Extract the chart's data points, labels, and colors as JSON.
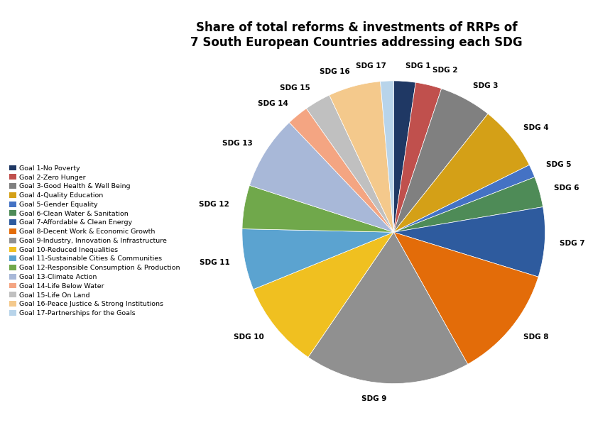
{
  "title": "Share of total reforms & investments of RRPs of\n7 South European Countries addressing each SDG",
  "sdg_labels": [
    "SDG 1",
    "SDG 2",
    "SDG 3",
    "SDG 4",
    "SDG 5",
    "SDG 6",
    "SDG 7",
    "SDG 8",
    "SDG 9",
    "SDG 10",
    "SDG 11",
    "SDG 12",
    "SDG 13",
    "SDG 14",
    "SDG 15",
    "SDG 16",
    "SDG 17"
  ],
  "values": [
    2.5,
    3.0,
    6.0,
    7.5,
    1.5,
    3.5,
    8.0,
    13.0,
    19.0,
    10.0,
    7.0,
    5.0,
    8.5,
    2.5,
    3.0,
    6.0,
    1.5
  ],
  "colors": [
    "#1f3864",
    "#c0504d",
    "#808080",
    "#d4a017",
    "#4472c4",
    "#4e8b57",
    "#2e5b9e",
    "#e36c09",
    "#909090",
    "#f0c020",
    "#5ba3d0",
    "#70a84b",
    "#a8b8d8",
    "#f4a582",
    "#c0c0c0",
    "#f4c98c",
    "#b8d4ea"
  ],
  "legend_labels": [
    "Goal 1-No Poverty",
    "Goal 2-Zero Hunger",
    "Goal 3-Good Health & Well Being",
    "Goal 4-Quality Education",
    "Goal 5-Gender Equality",
    "Goal 6-Clean Water & Sanitation",
    "Goal 7-Affordable & Clean Energy",
    "Goal 8-Decent Work & Economic Growth",
    "Goal 9-Industry, Innovation & Infrastructure",
    "Goal 10-Reduced Inequalities",
    "Goal 11-Sustainable Cities & Communities",
    "Goal 12-Responsible Consumption & Production",
    "Goal 13-Climate Action",
    "Goal 14-Life Below Water",
    "Goal 15-Life On Land",
    "Goal 16-Peace Justice & Strong Institutions",
    "Goal 17-Partnerships for the Goals"
  ],
  "legend_colors": [
    "#1f3864",
    "#c0504d",
    "#808080",
    "#d4a017",
    "#4472c4",
    "#4e8b57",
    "#2e5b9e",
    "#e36c09",
    "#909090",
    "#f0c020",
    "#5ba3d0",
    "#70a84b",
    "#a8b8d8",
    "#f4a582",
    "#c0c0c0",
    "#f4c98c",
    "#b8d4ea"
  ],
  "figsize": [
    8.66,
    6.06
  ],
  "dpi": 100
}
